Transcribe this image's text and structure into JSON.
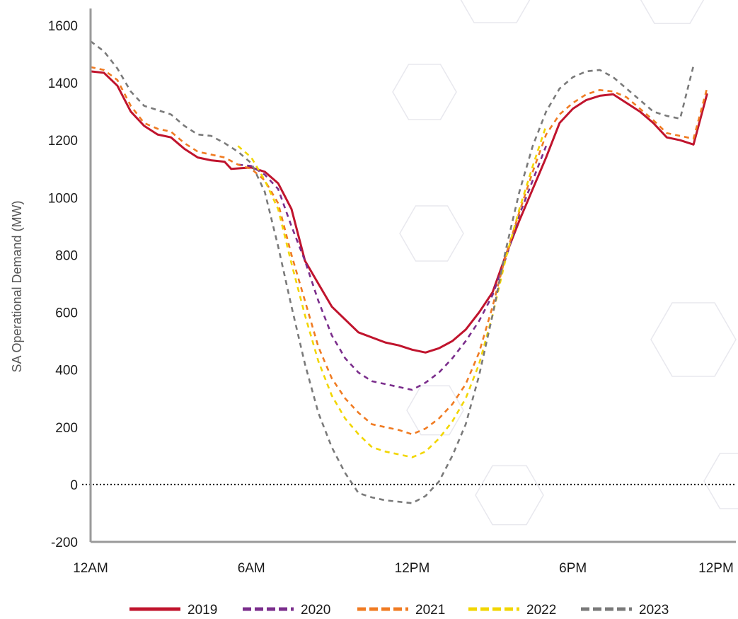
{
  "chart_data": {
    "type": "line",
    "xlabel": "",
    "ylabel": "SA Operational Demand (MW)",
    "ylim": [
      -200,
      1650
    ],
    "xlim": [
      0,
      23.5
    ],
    "yticks": [
      "1600",
      "1400",
      "1200",
      "1000",
      "800",
      "600",
      "400",
      "200",
      "0",
      "-200"
    ],
    "ytick_values": [
      1600,
      1400,
      1200,
      1000,
      800,
      600,
      400,
      200,
      0,
      -200
    ],
    "xticks": [
      "12AM",
      "6AM",
      "12PM",
      "6PM",
      "12PM"
    ],
    "xtick_values": [
      0,
      6,
      12,
      18,
      23.5
    ],
    "zero_line": "dotted",
    "grid": false,
    "legend_position": "bottom",
    "series": [
      {
        "name": "2019",
        "color": "#c0142d",
        "dash": "solid",
        "points": [
          [
            0,
            1440
          ],
          [
            0.5,
            1435
          ],
          [
            1,
            1390
          ],
          [
            1.5,
            1300
          ],
          [
            2,
            1250
          ],
          [
            2.5,
            1220
          ],
          [
            3,
            1210
          ],
          [
            3.5,
            1170
          ],
          [
            4,
            1140
          ],
          [
            4.5,
            1130
          ],
          [
            5,
            1125
          ],
          [
            5.25,
            1100
          ],
          [
            6,
            1105
          ],
          [
            6.5,
            1090
          ],
          [
            7,
            1050
          ],
          [
            7.5,
            960
          ],
          [
            8,
            780
          ],
          [
            8.5,
            700
          ],
          [
            9,
            620
          ],
          [
            10,
            530
          ],
          [
            11,
            495
          ],
          [
            11.5,
            485
          ],
          [
            12,
            470
          ],
          [
            12.5,
            460
          ],
          [
            13,
            475
          ],
          [
            13.5,
            500
          ],
          [
            14,
            540
          ],
          [
            14.5,
            600
          ],
          [
            15,
            670
          ],
          [
            15.5,
            800
          ],
          [
            16,
            920
          ],
          [
            16.5,
            1030
          ],
          [
            17,
            1140
          ],
          [
            17.5,
            1260
          ],
          [
            18,
            1310
          ],
          [
            18.5,
            1340
          ],
          [
            19,
            1355
          ],
          [
            19.5,
            1360
          ],
          [
            20,
            1330
          ],
          [
            20.5,
            1300
          ],
          [
            21,
            1260
          ],
          [
            21.5,
            1210
          ],
          [
            22,
            1200
          ],
          [
            22.5,
            1185
          ],
          [
            23,
            1360
          ]
        ]
      },
      {
        "name": "2020",
        "color": "#7b2e8c",
        "dash": "dashed",
        "points": [
          [
            5.5,
            1115
          ],
          [
            6,
            1110
          ],
          [
            6.5,
            1080
          ],
          [
            7,
            1030
          ],
          [
            7.5,
            900
          ],
          [
            8,
            780
          ],
          [
            8.5,
            640
          ],
          [
            9,
            520
          ],
          [
            9.5,
            440
          ],
          [
            10,
            390
          ],
          [
            10.5,
            360
          ],
          [
            11,
            350
          ],
          [
            11.5,
            340
          ],
          [
            12,
            330
          ],
          [
            12.5,
            355
          ],
          [
            13,
            390
          ],
          [
            13.5,
            440
          ],
          [
            14,
            500
          ],
          [
            14.5,
            570
          ],
          [
            15,
            660
          ],
          [
            15.5,
            790
          ],
          [
            16,
            940
          ],
          [
            16.5,
            1060
          ],
          [
            17,
            1180
          ]
        ]
      },
      {
        "name": "2021",
        "color": "#f07b22",
        "dash": "dashed",
        "points": [
          [
            0,
            1455
          ],
          [
            0.5,
            1445
          ],
          [
            1,
            1410
          ],
          [
            1.5,
            1320
          ],
          [
            2,
            1260
          ],
          [
            2.5,
            1240
          ],
          [
            3,
            1230
          ],
          [
            3.5,
            1190
          ],
          [
            4,
            1160
          ],
          [
            4.5,
            1150
          ],
          [
            5,
            1140
          ],
          [
            5.5,
            1115
          ],
          [
            6,
            1100
          ],
          [
            6.5,
            1060
          ],
          [
            7,
            980
          ],
          [
            7.5,
            800
          ],
          [
            8,
            640
          ],
          [
            8.5,
            480
          ],
          [
            9,
            370
          ],
          [
            9.5,
            300
          ],
          [
            10,
            250
          ],
          [
            10.5,
            210
          ],
          [
            11,
            200
          ],
          [
            11.5,
            190
          ],
          [
            12,
            175
          ],
          [
            12.5,
            195
          ],
          [
            13,
            230
          ],
          [
            13.5,
            280
          ],
          [
            14,
            350
          ],
          [
            14.5,
            460
          ],
          [
            15,
            620
          ],
          [
            15.5,
            800
          ],
          [
            16,
            950
          ],
          [
            16.5,
            1090
          ],
          [
            17,
            1220
          ],
          [
            17.5,
            1290
          ],
          [
            18,
            1330
          ],
          [
            18.5,
            1360
          ],
          [
            19,
            1375
          ],
          [
            19.5,
            1370
          ],
          [
            20,
            1350
          ],
          [
            20.5,
            1310
          ],
          [
            21,
            1270
          ],
          [
            21.5,
            1225
          ],
          [
            22,
            1215
          ],
          [
            22.5,
            1205
          ],
          [
            23,
            1380
          ]
        ]
      },
      {
        "name": "2022",
        "color": "#f2d600",
        "dash": "dashed",
        "points": [
          [
            5.5,
            1180
          ],
          [
            6,
            1140
          ],
          [
            6.5,
            1060
          ],
          [
            7,
            960
          ],
          [
            7.5,
            770
          ],
          [
            8,
            590
          ],
          [
            8.5,
            430
          ],
          [
            9,
            310
          ],
          [
            9.5,
            230
          ],
          [
            10,
            175
          ],
          [
            10.5,
            130
          ],
          [
            11,
            115
          ],
          [
            11.5,
            105
          ],
          [
            12,
            95
          ],
          [
            12.5,
            115
          ],
          [
            13,
            160
          ],
          [
            13.5,
            220
          ],
          [
            14,
            300
          ],
          [
            14.5,
            420
          ],
          [
            15,
            590
          ],
          [
            15.5,
            790
          ],
          [
            16,
            960
          ],
          [
            16.5,
            1110
          ],
          [
            17,
            1250
          ]
        ]
      },
      {
        "name": "2023",
        "color": "#7a7a7a",
        "dash": "dashed",
        "points": [
          [
            0,
            1545
          ],
          [
            0.5,
            1510
          ],
          [
            1,
            1450
          ],
          [
            1.5,
            1370
          ],
          [
            2,
            1320
          ],
          [
            2.5,
            1305
          ],
          [
            3,
            1290
          ],
          [
            3.5,
            1250
          ],
          [
            4,
            1220
          ],
          [
            4.5,
            1215
          ],
          [
            5,
            1190
          ],
          [
            5.5,
            1160
          ],
          [
            6,
            1120
          ],
          [
            6.5,
            1020
          ],
          [
            7,
            830
          ],
          [
            7.5,
            620
          ],
          [
            8,
            420
          ],
          [
            8.5,
            250
          ],
          [
            9,
            130
          ],
          [
            9.5,
            40
          ],
          [
            10,
            -30
          ],
          [
            10.5,
            -45
          ],
          [
            11,
            -55
          ],
          [
            11.5,
            -60
          ],
          [
            12,
            -65
          ],
          [
            12.5,
            -40
          ],
          [
            13,
            10
          ],
          [
            13.5,
            100
          ],
          [
            14,
            210
          ],
          [
            14.5,
            380
          ],
          [
            15,
            590
          ],
          [
            15.5,
            820
          ],
          [
            16,
            1020
          ],
          [
            16.5,
            1180
          ],
          [
            17,
            1300
          ],
          [
            17.5,
            1380
          ],
          [
            18,
            1420
          ],
          [
            18.5,
            1440
          ],
          [
            19,
            1445
          ],
          [
            19.5,
            1420
          ],
          [
            20,
            1380
          ],
          [
            20.5,
            1340
          ],
          [
            21,
            1300
          ],
          [
            21.5,
            1285
          ],
          [
            22,
            1275
          ],
          [
            22.5,
            1460
          ]
        ]
      }
    ]
  }
}
